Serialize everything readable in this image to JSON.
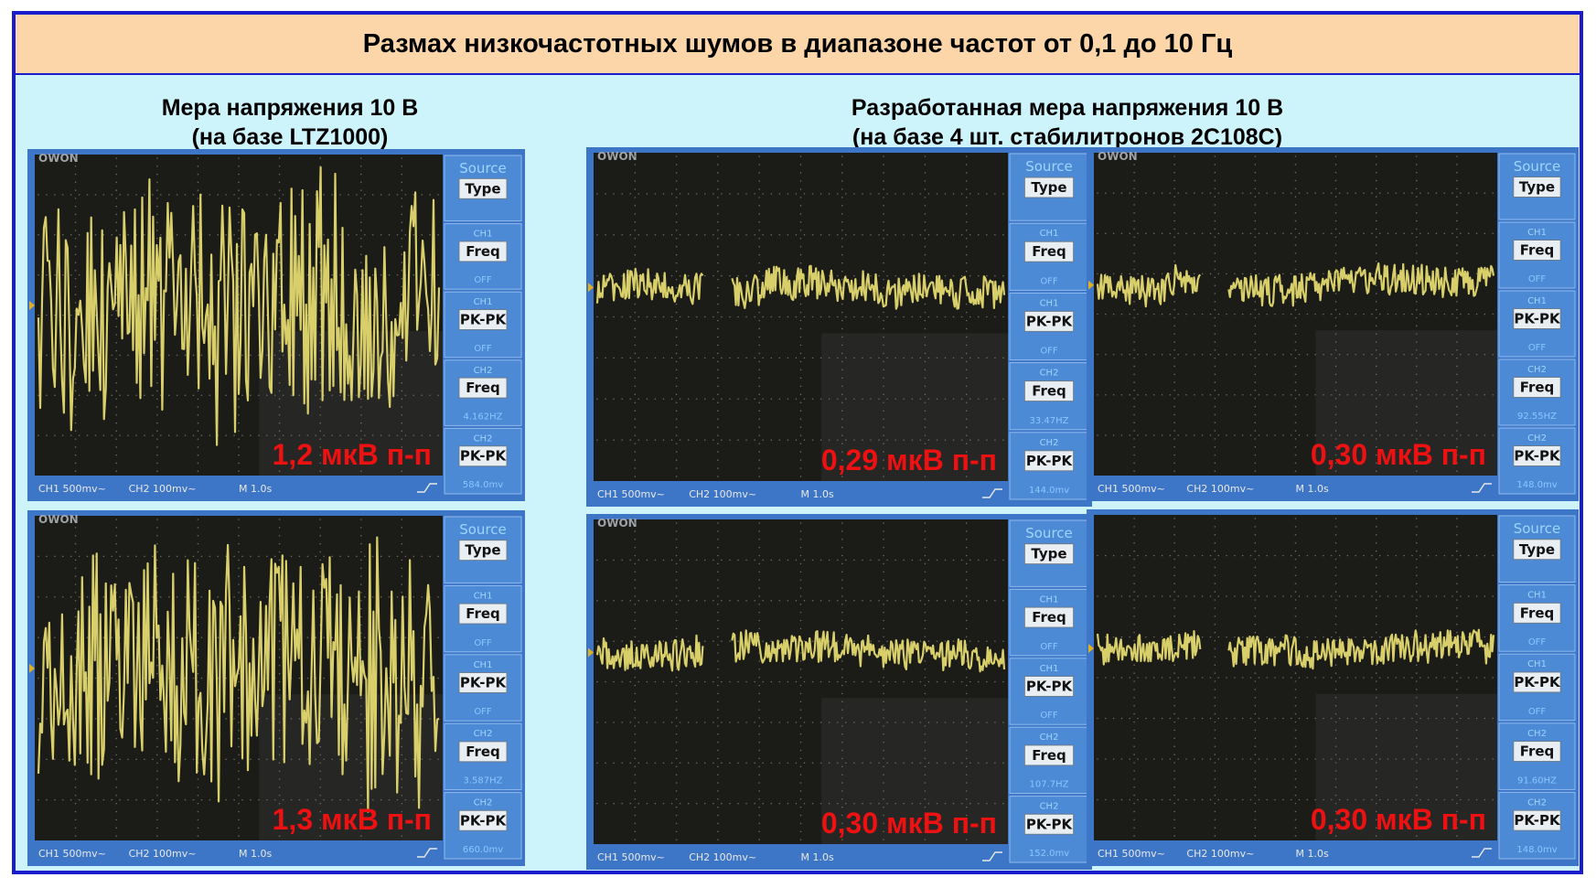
{
  "title": "Размах низкочастотных шумов в диапазоне частот от 0,1 до 10 Гц",
  "captions": {
    "left_line1": "Мера напряжения 10 В",
    "left_line2": "(на базе LTZ1000)",
    "right_line1": "Разработанная мера напряжения 10 В",
    "right_line2": "(на базе 4 шт. стабилитронов 2С108С)"
  },
  "scopes": [
    {
      "brand": "OWON",
      "overlay": "1,2 мкВ п-п",
      "ch2_freq": "4.162HZ",
      "ch2_pkpk": "584.0mv",
      "status": [
        "CH1 500mv~",
        "CH2 100mv~",
        "M 1.0s"
      ],
      "amplitude": 0.85,
      "gap": false
    },
    {
      "brand": "OWON",
      "overlay": "0,29 мкВ п-п",
      "ch2_freq": "33.47HZ",
      "ch2_pkpk": "144.0mv",
      "status": [
        "CH1 500mv~",
        "CH2 100mv~",
        "M 1.0s"
      ],
      "amplitude": 0.13,
      "gap": true
    },
    {
      "brand": "OWON",
      "overlay": "0,30 мкВ п-п",
      "ch2_freq": "92.55HZ",
      "ch2_pkpk": "148.0mv",
      "status": [
        "CH1 500mv~",
        "CH2 100mv~",
        "M 1.0s"
      ],
      "amplitude": 0.13,
      "gap": true
    },
    {
      "brand": "OWON",
      "overlay": "1,3 мкВ п-п",
      "ch2_freq": "3.587HZ",
      "ch2_pkpk": "660.0mv",
      "status": [
        "CH1 500mv~",
        "CH2 100mv~",
        "M 1.0s"
      ],
      "amplitude": 0.9,
      "gap": false
    },
    {
      "brand": "OWON",
      "overlay": "0,30 мкВ п-п",
      "ch2_freq": "107.7HZ",
      "ch2_pkpk": "152.0mv",
      "status": [
        "CH1 500mv~",
        "CH2 100mv~",
        "M 1.0s"
      ],
      "amplitude": 0.13,
      "gap": true
    },
    {
      "brand": "",
      "overlay": "0,30 мкВ п-п",
      "ch2_freq": "91.60HZ",
      "ch2_pkpk": "148.0mv",
      "status": [
        "CH1 500mv~",
        "CH2 100mv~",
        "M 1.0s"
      ],
      "amplitude": 0.13,
      "gap": true
    }
  ],
  "menu": {
    "source": "Source",
    "type": "Type",
    "ch1": "CH1",
    "ch2": "CH2",
    "freq": "Freq",
    "pkpk": "PK-PK",
    "off": "OFF"
  },
  "colors": {
    "frame": "#1c1ccf",
    "title_bg": "#fcd5a8",
    "page_bg": "#cdf3fb",
    "scope_bezel": "#3d76c6",
    "screen": "#1b1b18",
    "trace": "#d8cf6a",
    "overlay_text": "#ee1111"
  }
}
